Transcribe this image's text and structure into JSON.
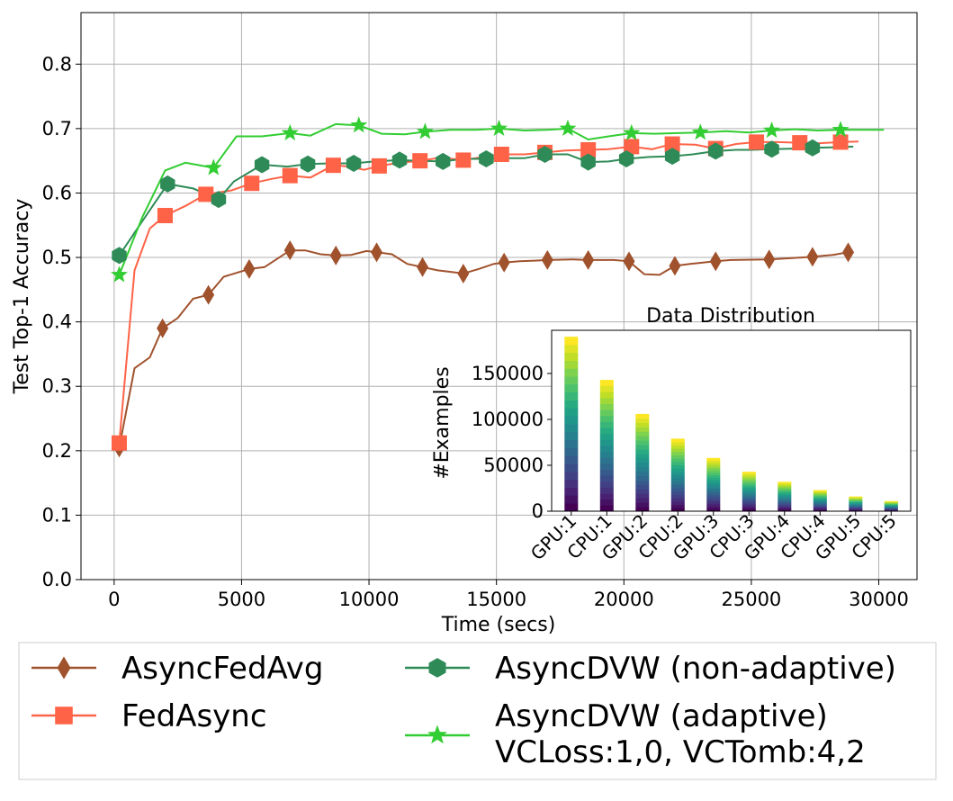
{
  "chart_data": [
    {
      "type": "line",
      "xlabel": "Time (secs)",
      "ylabel": "Test Top-1 Accuracy",
      "xlim": [
        -1300,
        31500
      ],
      "ylim": [
        0.0,
        0.88
      ],
      "xticks": [
        0,
        5000,
        10000,
        15000,
        20000,
        25000,
        30000
      ],
      "xtick_labels": [
        "0",
        "5000",
        "10000",
        "15000",
        "20000",
        "25000",
        "30000"
      ],
      "yticks": [
        0.0,
        0.1,
        0.2,
        0.3,
        0.4,
        0.5,
        0.6,
        0.7,
        0.8
      ],
      "ytick_labels": [
        "0.0",
        "0.1",
        "0.2",
        "0.3",
        "0.4",
        "0.5",
        "0.6",
        "0.7",
        "0.8"
      ],
      "grid": true,
      "legend_position": "below plot, two columns",
      "series": [
        {
          "name": "AsyncFedAvg",
          "color": "#a0522d",
          "marker": "diamond",
          "x": [
            200,
            800,
            1400,
            1900,
            2500,
            3100,
            3700,
            4300,
            5300,
            5900,
            6900,
            7500,
            8100,
            8700,
            9300,
            9900,
            10300,
            10900,
            11500,
            12100,
            12700,
            13100,
            13700,
            14300,
            14900,
            15300,
            15900,
            16500,
            17000,
            18000,
            18600,
            19600,
            20200,
            20800,
            21400,
            22000,
            22600,
            23600,
            24200,
            25700,
            26600,
            27400,
            28200,
            28800
          ],
          "y": [
            0.205,
            0.328,
            0.345,
            0.39,
            0.406,
            0.436,
            0.442,
            0.47,
            0.482,
            0.485,
            0.511,
            0.511,
            0.505,
            0.503,
            0.504,
            0.51,
            0.508,
            0.505,
            0.49,
            0.485,
            0.48,
            0.478,
            0.475,
            0.482,
            0.49,
            0.492,
            0.494,
            0.495,
            0.496,
            0.497,
            0.496,
            0.496,
            0.494,
            0.474,
            0.473,
            0.487,
            0.49,
            0.494,
            0.496,
            0.497,
            0.499,
            0.501,
            0.504,
            0.508
          ],
          "marker_x": [
            200,
            1900,
            3700,
            5300,
            6900,
            8700,
            10300,
            12100,
            13700,
            15300,
            17000,
            18600,
            20200,
            22000,
            23600,
            25700,
            27400,
            28800
          ],
          "marker_y": [
            0.205,
            0.39,
            0.442,
            0.482,
            0.511,
            0.503,
            0.508,
            0.485,
            0.475,
            0.492,
            0.496,
            0.496,
            0.494,
            0.487,
            0.494,
            0.497,
            0.501,
            0.508
          ]
        },
        {
          "name": "FedAsync",
          "color": "#ff6347",
          "marker": "square",
          "x": [
            200,
            800,
            1400,
            2000,
            2800,
            3600,
            4600,
            5400,
            6200,
            6900,
            7700,
            8600,
            9300,
            9800,
            10400,
            11200,
            12000,
            12800,
            13700,
            14500,
            15200,
            16100,
            16900,
            17700,
            18600,
            19400,
            20300,
            21100,
            21900,
            22800,
            23600,
            24400,
            25200,
            26000,
            26900,
            27600,
            28500,
            29200
          ],
          "y": [
            0.212,
            0.48,
            0.545,
            0.565,
            0.58,
            0.598,
            0.604,
            0.615,
            0.622,
            0.627,
            0.624,
            0.643,
            0.641,
            0.636,
            0.642,
            0.647,
            0.65,
            0.655,
            0.651,
            0.656,
            0.66,
            0.66,
            0.663,
            0.666,
            0.667,
            0.668,
            0.672,
            0.668,
            0.676,
            0.675,
            0.669,
            0.676,
            0.679,
            0.679,
            0.678,
            0.677,
            0.679,
            0.68
          ],
          "marker_x": [
            200,
            2000,
            3600,
            5400,
            6900,
            8600,
            10400,
            12000,
            13700,
            15200,
            16900,
            18600,
            20300,
            21900,
            23600,
            25200,
            26900,
            28500
          ],
          "marker_y": [
            0.212,
            0.565,
            0.598,
            0.615,
            0.627,
            0.643,
            0.642,
            0.65,
            0.651,
            0.66,
            0.663,
            0.667,
            0.672,
            0.676,
            0.669,
            0.679,
            0.678,
            0.679
          ]
        },
        {
          "name": "AsyncDVW (non-adaptive)",
          "color": "#2e8b57",
          "marker": "hexagon",
          "x": [
            200,
            1100,
            2100,
            3100,
            4100,
            4700,
            5800,
            6800,
            7600,
            8500,
            9400,
            10200,
            11200,
            12000,
            12900,
            13700,
            14600,
            15100,
            16100,
            16900,
            17800,
            18600,
            19400,
            20100,
            21000,
            21900,
            22700,
            23600,
            24400,
            25000,
            25800,
            26700,
            27400,
            28300,
            29000
          ],
          "y": [
            0.503,
            0.556,
            0.614,
            0.607,
            0.59,
            0.618,
            0.644,
            0.641,
            0.645,
            0.646,
            0.646,
            0.649,
            0.651,
            0.65,
            0.649,
            0.653,
            0.653,
            0.654,
            0.654,
            0.66,
            0.66,
            0.648,
            0.649,
            0.653,
            0.656,
            0.657,
            0.66,
            0.665,
            0.667,
            0.667,
            0.668,
            0.669,
            0.67,
            0.671,
            0.672
          ],
          "marker_x": [
            200,
            2100,
            4100,
            5800,
            7600,
            9400,
            11200,
            12900,
            14600,
            16900,
            18600,
            20100,
            21900,
            23600,
            25800,
            27400
          ],
          "marker_y": [
            0.503,
            0.614,
            0.59,
            0.644,
            0.645,
            0.646,
            0.651,
            0.649,
            0.653,
            0.66,
            0.648,
            0.653,
            0.657,
            0.665,
            0.668,
            0.67
          ]
        },
        {
          "name": "AsyncDVW (adaptive)\nVCLoss:1,0, VCTomb:4,2",
          "color": "#32cd32",
          "marker": "star",
          "x": [
            200,
            1100,
            2000,
            2800,
            3900,
            4800,
            5800,
            6900,
            7700,
            8700,
            9600,
            10500,
            11400,
            12200,
            13200,
            14200,
            15100,
            16100,
            17000,
            17800,
            18600,
            19400,
            20300,
            21200,
            22100,
            23000,
            24000,
            24900,
            25800,
            26700,
            27600,
            28500,
            29500,
            30200
          ],
          "y": [
            0.473,
            0.562,
            0.635,
            0.647,
            0.639,
            0.688,
            0.688,
            0.693,
            0.689,
            0.707,
            0.705,
            0.692,
            0.691,
            0.695,
            0.698,
            0.698,
            0.7,
            0.697,
            0.698,
            0.7,
            0.683,
            0.688,
            0.693,
            0.692,
            0.693,
            0.694,
            0.696,
            0.694,
            0.697,
            0.699,
            0.697,
            0.698,
            0.698,
            0.698
          ],
          "marker_x": [
            200,
            3900,
            6900,
            9600,
            12200,
            15100,
            17800,
            20300,
            23000,
            25800,
            28500
          ],
          "marker_y": [
            0.473,
            0.639,
            0.693,
            0.705,
            0.695,
            0.7,
            0.7,
            0.693,
            0.694,
            0.697,
            0.698
          ]
        }
      ]
    },
    {
      "type": "bar",
      "stacked": true,
      "colormap": "viridis",
      "title": "Data Distribution",
      "xlabel": "",
      "ylabel": "#Examples",
      "categories": [
        "GPU:1",
        "CPU:1",
        "GPU:2",
        "CPU:2",
        "GPU:3",
        "CPU:3",
        "GPU:4",
        "CPU:4",
        "GPU:5",
        "CPU:5"
      ],
      "values": [
        190000,
        143000,
        106000,
        79000,
        58000,
        43000,
        32000,
        23000,
        16000,
        11000
      ],
      "ylim": [
        0,
        197000
      ],
      "yticks": [
        0,
        50000,
        100000,
        150000
      ],
      "ytick_labels": [
        "0",
        "50000",
        "100000",
        "150000"
      ],
      "grid": false
    }
  ]
}
